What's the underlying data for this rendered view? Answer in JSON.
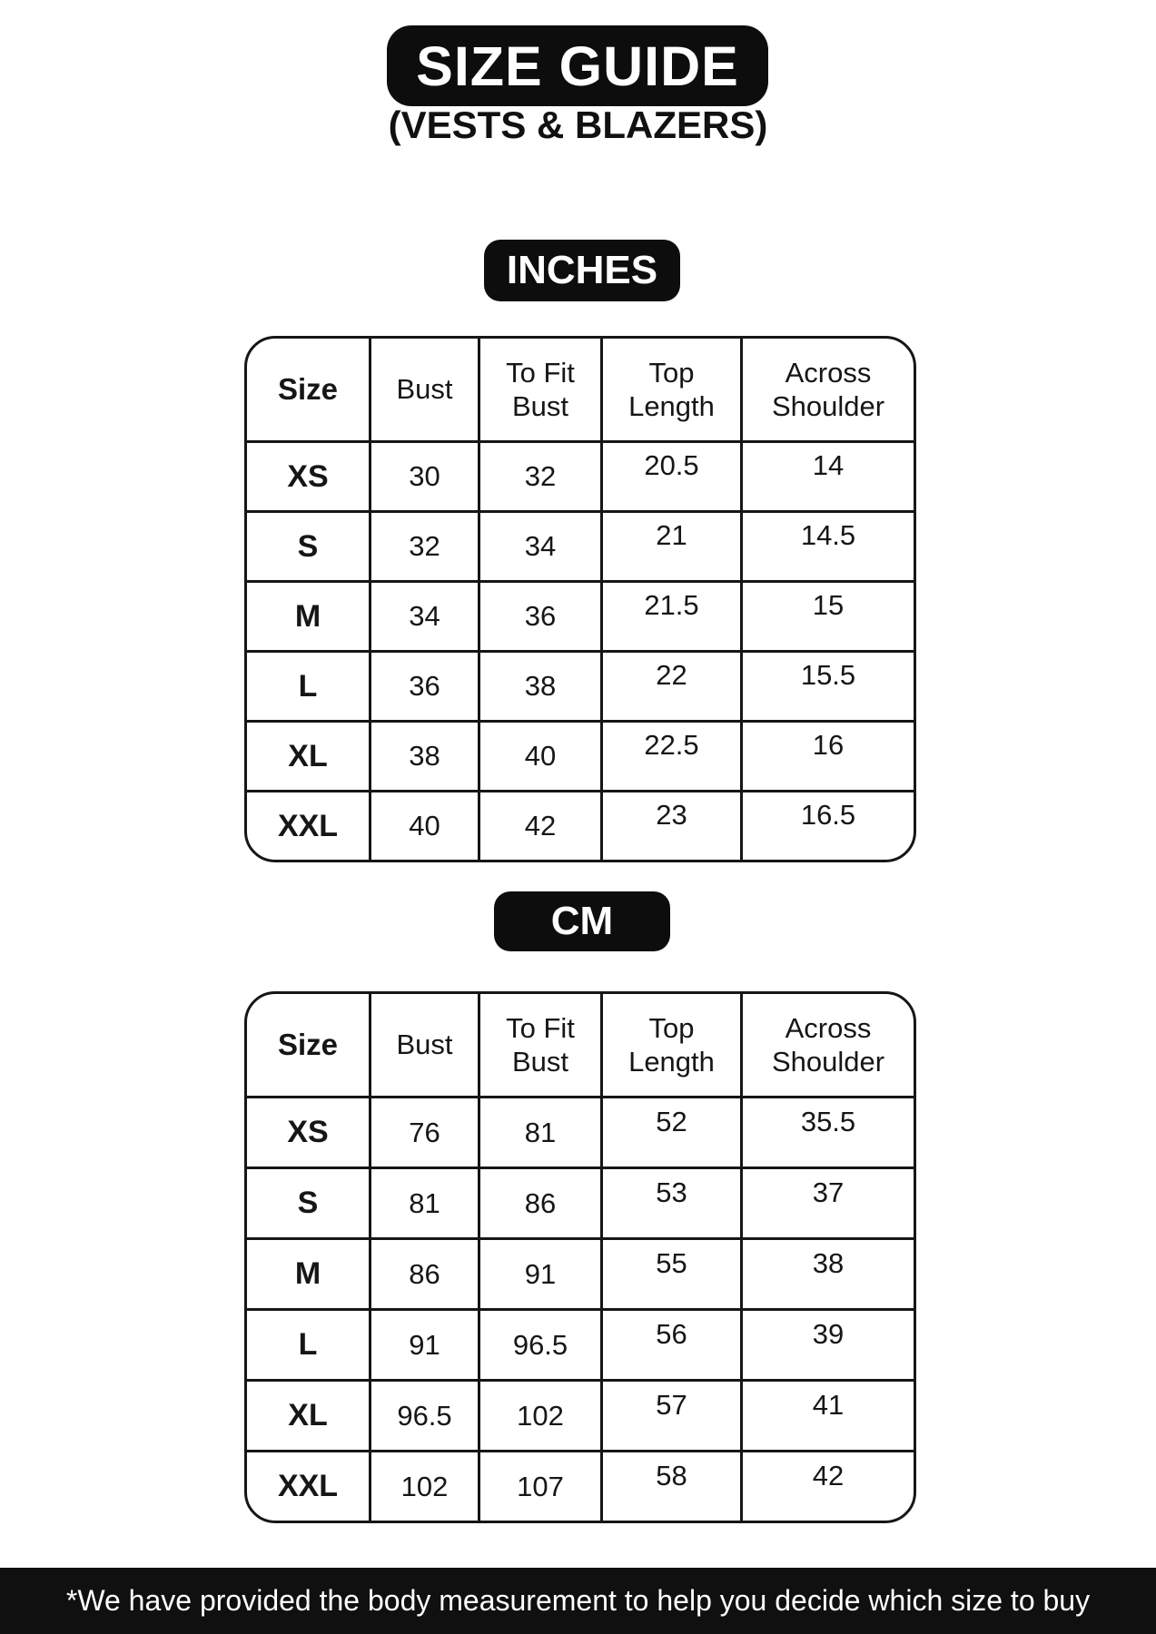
{
  "header": {
    "title": "SIZE GUIDE",
    "subtitle": "(VESTS & BLAZERS)"
  },
  "tables": {
    "inches": {
      "unit_label": "INCHES",
      "headers": [
        "Size",
        "Bust",
        "To Fit\nBust",
        "Top\nLength",
        "Across\nShoulder"
      ],
      "rows": [
        [
          "XS",
          "30",
          "32",
          "20.5",
          "14"
        ],
        [
          "S",
          "32",
          "34",
          "21",
          "14.5"
        ],
        [
          "M",
          "34",
          "36",
          "21.5",
          "15"
        ],
        [
          "L",
          "36",
          "38",
          "22",
          "15.5"
        ],
        [
          "XL",
          "38",
          "40",
          "22.5",
          "16"
        ],
        [
          "XXL",
          "40",
          "42",
          "23",
          "16.5"
        ]
      ]
    },
    "cm": {
      "unit_label": "CM",
      "headers": [
        "Size",
        "Bust",
        "To Fit\nBust",
        "Top\nLength",
        "Across\nShoulder"
      ],
      "rows": [
        [
          "XS",
          "76",
          "81",
          "52",
          "35.5"
        ],
        [
          "S",
          "81",
          "86",
          "53",
          "37"
        ],
        [
          "M",
          "86",
          "91",
          "55",
          "38"
        ],
        [
          "L",
          "91",
          "96.5",
          "56",
          "39"
        ],
        [
          "XL",
          "96.5",
          "102",
          "57",
          "41"
        ],
        [
          "XXL",
          "102",
          "107",
          "58",
          "42"
        ]
      ]
    }
  },
  "footer": {
    "note": "*We have provided the body measurement to help you decide which size to buy"
  },
  "colors": {
    "badge_bg": "#0d0d0d",
    "badge_text": "#ffffff",
    "table_border": "#161616",
    "text": "#161616",
    "footer_bg": "#101010",
    "footer_text": "#ffffff",
    "page_bg": "#ffffff"
  }
}
